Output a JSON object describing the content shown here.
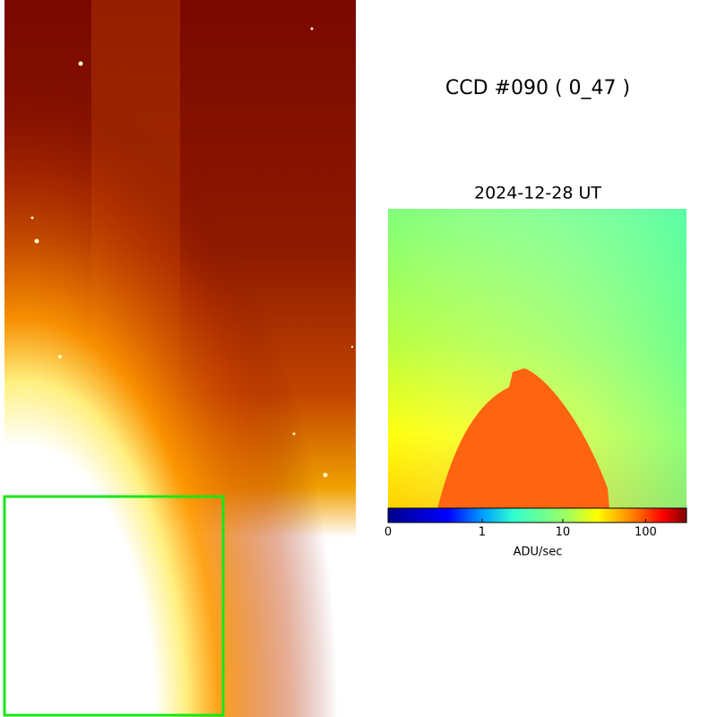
{
  "title": "CCD #090 ( 0_47 )",
  "date": "2024-12-28 UT",
  "colorbar": {
    "label": "ADU/sec",
    "ticks": [
      0,
      1,
      10,
      100
    ],
    "range": [
      0,
      310
    ]
  }
}
